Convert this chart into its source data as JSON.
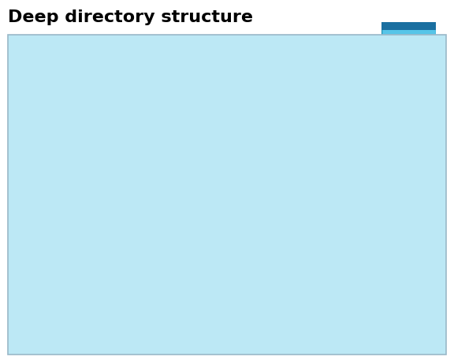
{
  "title": "Deep directory structure",
  "bg_color": "#bce8f5",
  "border_color": "#9ab8c8",
  "line_color": "#7ab0d0",
  "folder_yellow": "#FFBA00",
  "folder_dark": "#CC9000",
  "folder_tab": "#FFD060",
  "folder_tab_white": "#FFFFFF",
  "doc_fill": "#FFFFFF",
  "doc_border": "#4472C4",
  "doc_fold": "#4472C4",
  "doc_line": "#4472C4",
  "title_fontsize": 16,
  "title_fontweight": "bold",
  "logo_light": "#56C5E8",
  "logo_dark_top": "#1E6FA0",
  "logo_mid": "#1565C0",
  "logo_accent": "#AADCF0"
}
